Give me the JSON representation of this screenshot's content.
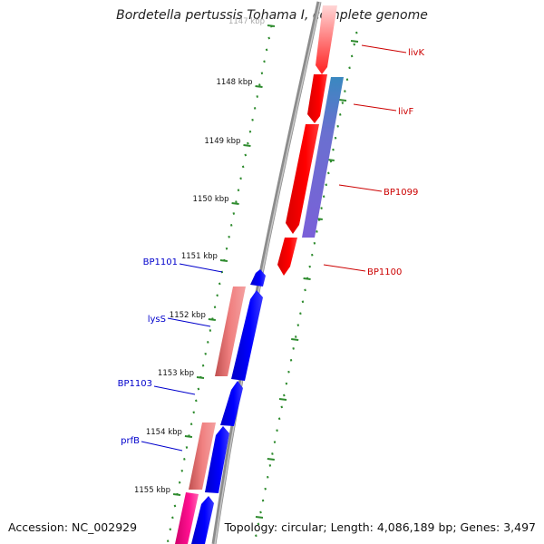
{
  "title": "Bordetella pertussis Tohama I, complete genome",
  "footer": {
    "accession": "Accession: NC_002929",
    "summary": "Topology: circular; Length: 4,086,189 bp; Genes: 3,497"
  },
  "colors": {
    "backbone": "#8c8c8c",
    "tick": "#2e8b2e",
    "forward_gene": "#ff0000",
    "reverse_gene": "#0000ff",
    "rna_forward": "#7070d0",
    "rna_reverse": "#e87070",
    "trna": "#ff0090",
    "label_forward": "#cc0000",
    "label_reverse": "#0000cc"
  },
  "ticks": [
    {
      "label": "1147 kbp"
    },
    {
      "label": "1148 kbp"
    },
    {
      "label": "1149 kbp"
    },
    {
      "label": "1150 kbp"
    },
    {
      "label": "1151 kbp"
    },
    {
      "label": "1152 kbp"
    },
    {
      "label": "1153 kbp"
    },
    {
      "label": "1154 kbp"
    },
    {
      "label": "1155 kbp"
    }
  ],
  "features": [
    {
      "name": "livK",
      "strand": "forward"
    },
    {
      "name": "livF",
      "strand": "forward"
    },
    {
      "name": "BP1099",
      "strand": "forward"
    },
    {
      "name": "BP1100",
      "strand": "forward"
    },
    {
      "name": "BP1101",
      "strand": "reverse"
    },
    {
      "name": "lysS",
      "strand": "reverse"
    },
    {
      "name": "BP1103",
      "strand": "reverse"
    },
    {
      "name": "prfB",
      "strand": "reverse"
    }
  ]
}
